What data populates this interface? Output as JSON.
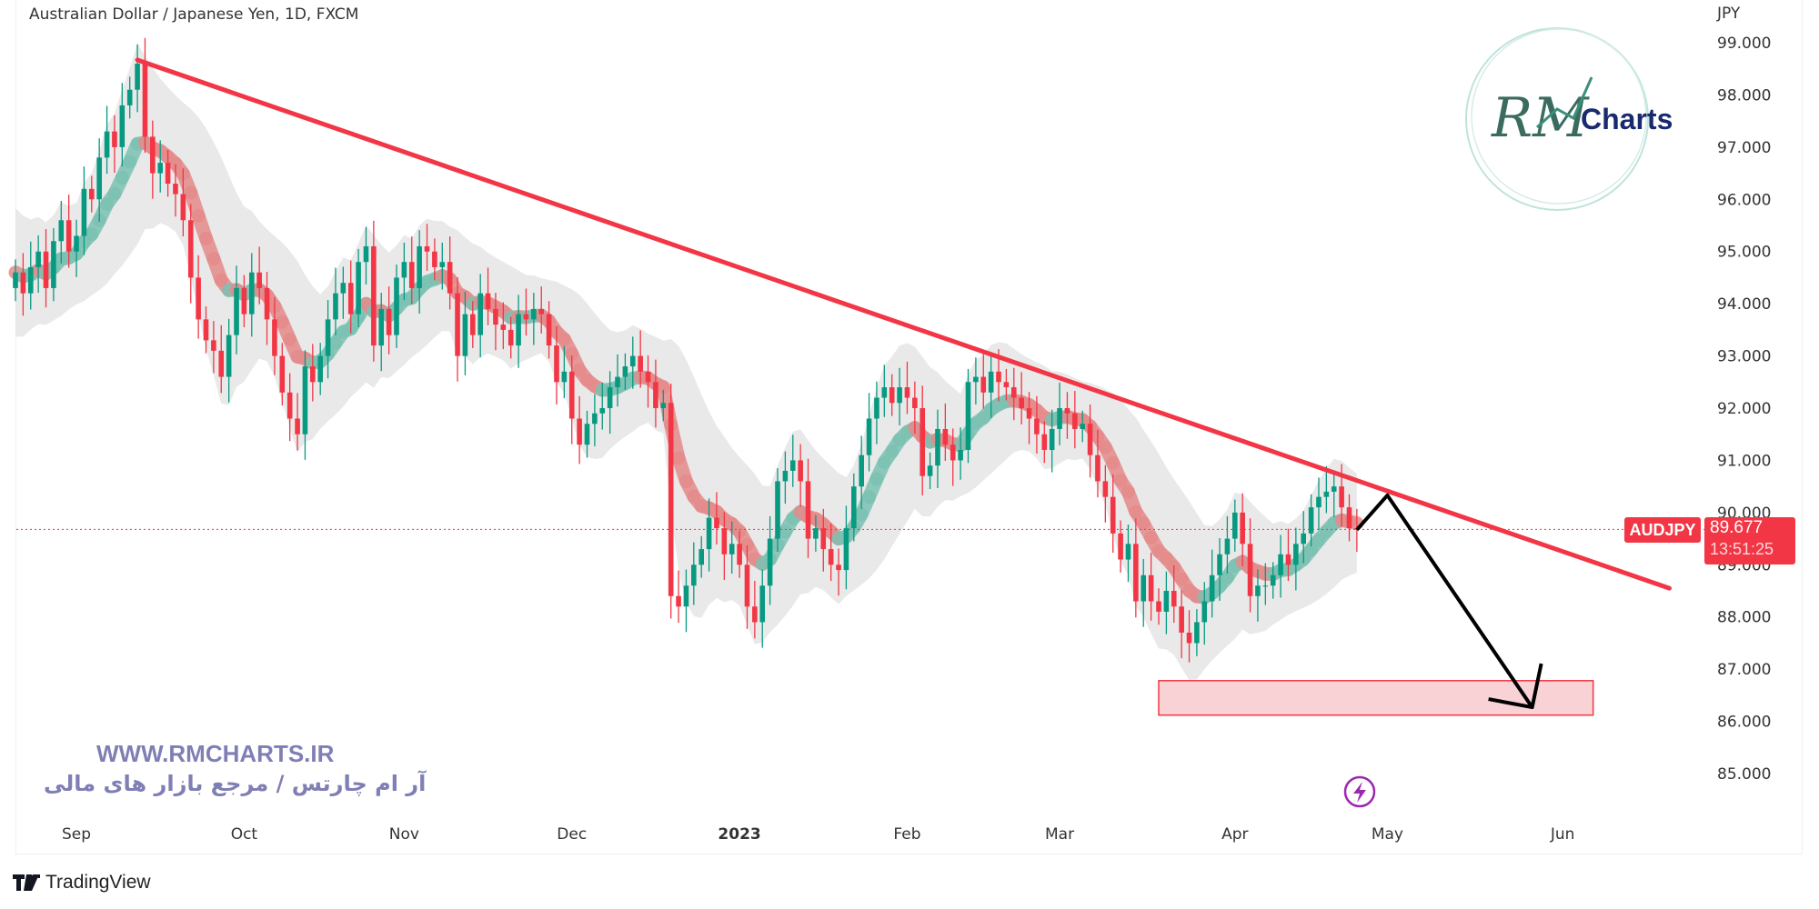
{
  "header": {
    "title": "Australian Dollar / Japanese Yen, 1D, FXCM"
  },
  "price_axis": {
    "unit": "JPY"
  },
  "symbol_badge": {
    "symbol": "AUDJPY",
    "price": "89.677",
    "countdown": "13:51:25"
  },
  "watermark": {
    "url": "WWW.RMCHARTS.IR",
    "tagline": "آر ام چارتس / مرجع بازار های مالی",
    "logo_text": "Charts",
    "logo_script": "RM"
  },
  "footer": {
    "brand": "TradingView"
  },
  "colors": {
    "up": "#089981",
    "down": "#f23645",
    "trendline": "#f23645",
    "ribbon_up": "#7cc2b3",
    "ribbon_down": "#e58b8b",
    "envelope": "#e3e3e3",
    "zone": "#f9d2d5",
    "arrow": "#000000",
    "watermark": "#7f7fb5"
  },
  "icons": {
    "alert": "lightning-icon",
    "brand": "tradingview-logo"
  },
  "chart_data": {
    "type": "candlestick",
    "title": "Australian Dollar / Japanese Yen, 1D, FXCM",
    "ylabel": "JPY",
    "ylim": [
      84.3,
      99.8
    ],
    "yticks": [
      "85.000",
      "86.000",
      "87.000",
      "88.000",
      "89.000",
      "90.000",
      "91.000",
      "92.000",
      "93.000",
      "94.000",
      "95.000",
      "96.000",
      "97.000",
      "98.000",
      "99.000"
    ],
    "xticks": [
      {
        "label": "Sep",
        "date": "2022-09-01"
      },
      {
        "label": "Oct",
        "date": "2022-10-03"
      },
      {
        "label": "Nov",
        "date": "2022-11-01"
      },
      {
        "label": "Dec",
        "date": "2022-12-01"
      },
      {
        "label": "2023",
        "date": "2023-01-02",
        "bold": true
      },
      {
        "label": "Feb",
        "date": "2023-02-01"
      },
      {
        "label": "Mar",
        "date": "2023-03-01"
      },
      {
        "label": "Apr",
        "date": "2023-04-03"
      },
      {
        "label": "May",
        "date": "2023-05-01"
      },
      {
        "label": "Jun",
        "date": "2023-06-01"
      }
    ],
    "last_price": 89.677,
    "weekly_closes": [
      {
        "week": "2022-08-22",
        "close": [
          94.6,
          94.2,
          94.7,
          95.0,
          94.3
        ]
      },
      {
        "week": "2022-08-29",
        "close": [
          95.2,
          95.6,
          95.0,
          95.3,
          96.2
        ]
      },
      {
        "week": "2022-09-05",
        "close": [
          96.0,
          96.8,
          97.3,
          97.0,
          97.8
        ]
      },
      {
        "week": "2022-09-12",
        "close": [
          98.1,
          98.6,
          97.2,
          96.5,
          96.7
        ]
      },
      {
        "week": "2022-09-19",
        "close": [
          96.3,
          96.1,
          95.6,
          94.5,
          93.7
        ]
      },
      {
        "week": "2022-09-26",
        "close": [
          93.3,
          93.1,
          92.6,
          93.4,
          94.3
        ]
      },
      {
        "week": "2022-10-03",
        "close": [
          93.8,
          94.6,
          94.3,
          93.7,
          93.0
        ]
      },
      {
        "week": "2022-10-10",
        "close": [
          92.3,
          91.8,
          91.5,
          92.8,
          92.5
        ]
      },
      {
        "week": "2022-10-17",
        "close": [
          93.0,
          93.7,
          94.2,
          94.4,
          93.8
        ]
      },
      {
        "week": "2022-10-24",
        "close": [
          94.8,
          95.1,
          93.2,
          93.9,
          93.4
        ]
      },
      {
        "week": "2022-10-31",
        "close": [
          94.5,
          94.8,
          94.3,
          95.1,
          95.0
        ]
      },
      {
        "week": "2022-11-07",
        "close": [
          94.7,
          94.8,
          94.2,
          93.0,
          93.8
        ]
      },
      {
        "week": "2022-11-14",
        "close": [
          93.4,
          94.2,
          93.9,
          93.6,
          93.5
        ]
      },
      {
        "week": "2022-11-21",
        "close": [
          93.2,
          93.8,
          93.7,
          93.9,
          93.8
        ]
      },
      {
        "week": "2022-11-28",
        "close": [
          93.2,
          92.5,
          92.7,
          91.8,
          91.3
        ]
      },
      {
        "week": "2022-12-05",
        "close": [
          91.7,
          91.9,
          92.0,
          92.4,
          92.6
        ]
      },
      {
        "week": "2022-12-12",
        "close": [
          92.8,
          93.0,
          92.7,
          92.5,
          92.0
        ]
      },
      {
        "week": "2022-12-19",
        "close": [
          92.1,
          88.4,
          88.2,
          88.6,
          89.0
        ]
      },
      {
        "week": "2022-12-26",
        "close": [
          89.3,
          89.9,
          89.7,
          89.2,
          89.4
        ]
      },
      {
        "week": "2023-01-02",
        "close": [
          89.0,
          88.2,
          87.9,
          88.6,
          89.5
        ]
      },
      {
        "week": "2023-01-09",
        "close": [
          90.6,
          90.8,
          91.0,
          90.6,
          89.5
        ]
      },
      {
        "week": "2023-01-16",
        "close": [
          89.7,
          89.3,
          89.0,
          88.9,
          89.7
        ]
      },
      {
        "week": "2023-01-23",
        "close": [
          90.5,
          91.1,
          91.8,
          92.2,
          92.4
        ]
      },
      {
        "week": "2023-01-30",
        "close": [
          92.1,
          92.4,
          92.2,
          92.0,
          90.7
        ]
      },
      {
        "week": "2023-02-06",
        "close": [
          90.9,
          91.6,
          91.3,
          91.0,
          91.2
        ]
      },
      {
        "week": "2023-02-13",
        "close": [
          92.5,
          92.6,
          92.3,
          92.7,
          92.5
        ]
      },
      {
        "week": "2023-02-20",
        "close": [
          92.4,
          92.2,
          92.0,
          91.8,
          91.5
        ]
      },
      {
        "week": "2023-02-27",
        "close": [
          91.2,
          91.6,
          92.0,
          91.9,
          91.6
        ]
      },
      {
        "week": "2023-03-06",
        "close": [
          91.7,
          91.1,
          90.6,
          90.3,
          89.6
        ]
      },
      {
        "week": "2023-03-13",
        "close": [
          89.1,
          89.4,
          88.3,
          88.8,
          88.3
        ]
      },
      {
        "week": "2023-03-20",
        "close": [
          88.1,
          88.5,
          88.2,
          87.7,
          87.5
        ]
      },
      {
        "week": "2023-03-27",
        "close": [
          87.9,
          88.3,
          88.8,
          89.2,
          89.5
        ]
      },
      {
        "week": "2023-04-03",
        "close": [
          90.0,
          89.4,
          88.4,
          88.6,
          88.6
        ]
      },
      {
        "week": "2023-04-10",
        "close": [
          88.8,
          89.2,
          89.0,
          89.4,
          89.6
        ]
      },
      {
        "week": "2023-04-17",
        "close": [
          90.1,
          90.3,
          90.4,
          90.5,
          90.1
        ]
      },
      {
        "week": "2023-04-24",
        "close": [
          89.7,
          89.677
        ]
      }
    ],
    "annotations": {
      "trendline": {
        "from": {
          "date": "2022-09-13",
          "price": 98.67
        },
        "to": {
          "date": "2023-06-21",
          "price": 88.55
        }
      },
      "target_zone": {
        "from_date": "2023-03-20",
        "to_date": "2023-06-07",
        "price_top": 86.78,
        "price_bottom": 86.12
      },
      "projection_arrow": [
        {
          "date": "2023-04-25",
          "price": 89.67
        },
        {
          "date": "2023-05-01",
          "price": 90.33
        },
        {
          "date": "2023-05-26",
          "price": 86.27
        }
      ]
    }
  }
}
